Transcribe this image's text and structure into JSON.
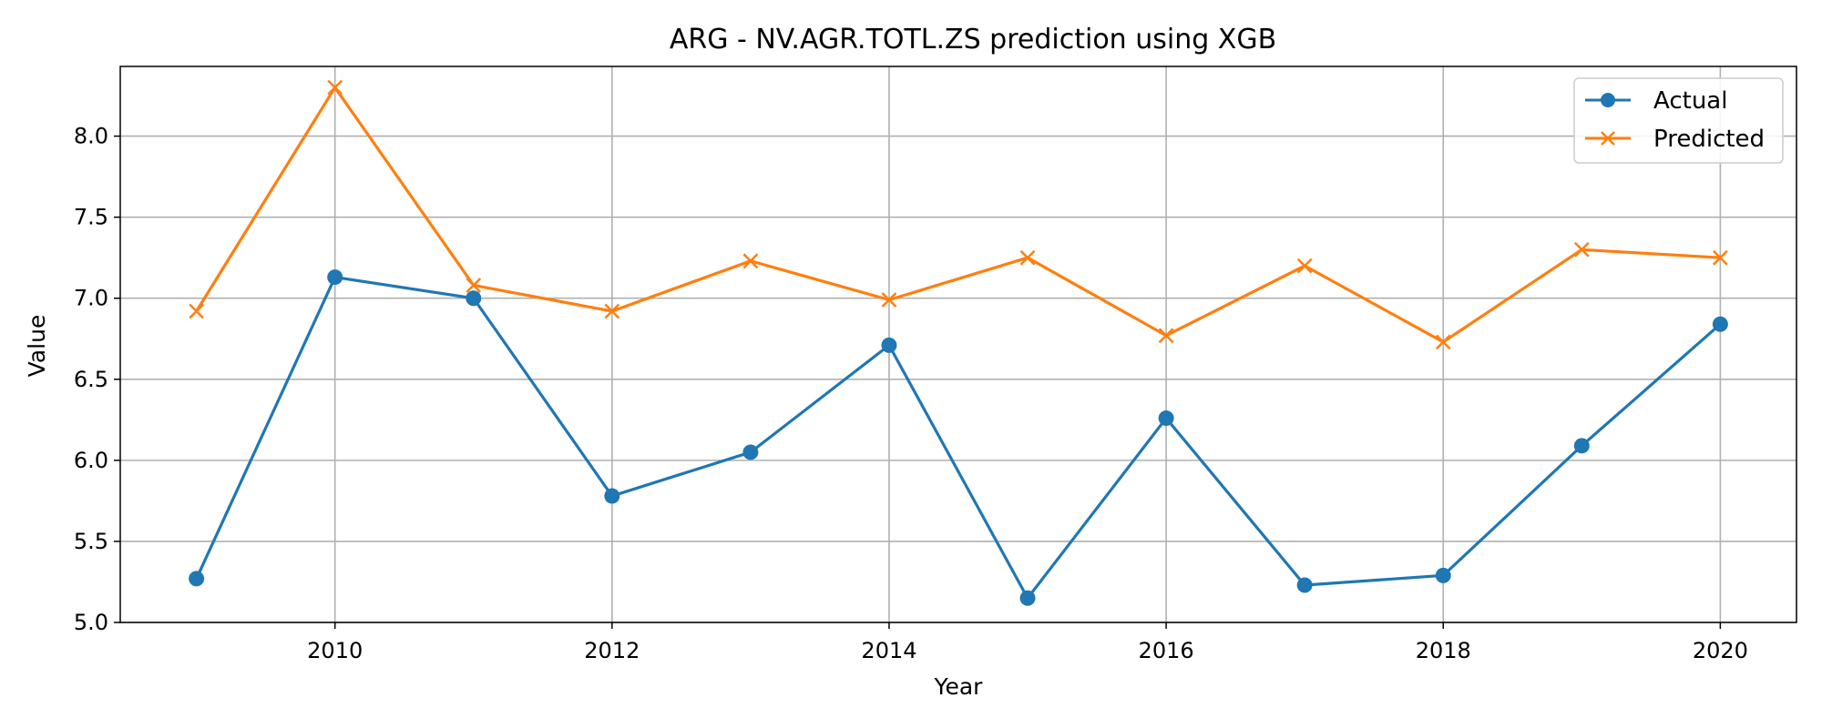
{
  "chart_data": {
    "type": "line",
    "title": "ARG - NV.AGR.TOTL.ZS prediction using XGB",
    "xlabel": "Year",
    "ylabel": "Value",
    "x": [
      2009,
      2010,
      2011,
      2012,
      2013,
      2014,
      2015,
      2016,
      2017,
      2018,
      2019,
      2020
    ],
    "xlim": [
      2008.45,
      2020.55
    ],
    "ylim": [
      5.0,
      8.43
    ],
    "xticks": [
      "2010",
      "2012",
      "2014",
      "2016",
      "2018",
      "2020"
    ],
    "yticks": [
      "5.0",
      "5.5",
      "6.0",
      "6.5",
      "7.0",
      "7.5",
      "8.0"
    ],
    "grid": true,
    "legend_position": "top-right",
    "series": [
      {
        "name": "Actual",
        "color": "#1f77b4",
        "marker": "circle",
        "values": [
          5.27,
          7.13,
          7.0,
          5.78,
          6.05,
          6.71,
          5.15,
          6.26,
          5.23,
          5.29,
          6.09,
          6.84
        ]
      },
      {
        "name": "Predicted",
        "color": "#ff7f0e",
        "marker": "x",
        "values": [
          6.92,
          8.3,
          7.08,
          6.92,
          7.23,
          6.99,
          7.25,
          6.77,
          7.2,
          6.73,
          7.3,
          7.25
        ]
      }
    ]
  }
}
